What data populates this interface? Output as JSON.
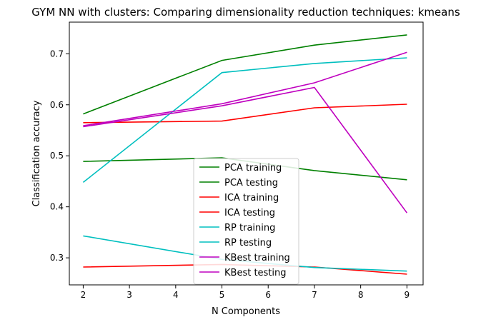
{
  "chart_data": {
    "type": "line",
    "title": "GYM NN with clusters: Comparing dimensionality reduction techniques: kmeans",
    "xlabel": "N Components",
    "ylabel": "Classification accuracy",
    "x": [
      2,
      5,
      7,
      9
    ],
    "xticks": [
      "2",
      "3",
      "4",
      "5",
      "6",
      "7",
      "8",
      "9"
    ],
    "yticks": [
      "0.3",
      "0.4",
      "0.5",
      "0.6",
      "0.7"
    ],
    "xlim": [
      1.7,
      9.35
    ],
    "ylim": [
      0.247,
      0.762
    ],
    "grid": false,
    "legend_position": "lower-center",
    "series": [
      {
        "name": "PCA training",
        "color": "#008000",
        "values": [
          0.582,
          0.687,
          0.717,
          0.737
        ]
      },
      {
        "name": "PCA testing",
        "color": "#008000",
        "values": [
          0.489,
          0.496,
          0.471,
          0.453
        ]
      },
      {
        "name": "ICA training",
        "color": "#ff0000",
        "values": [
          0.565,
          0.568,
          0.594,
          0.601
        ]
      },
      {
        "name": "ICA testing",
        "color": "#ff0000",
        "values": [
          0.282,
          0.287,
          0.282,
          0.268
        ]
      },
      {
        "name": "RP training",
        "color": "#00bfbf",
        "values": [
          0.448,
          0.663,
          0.681,
          0.692
        ]
      },
      {
        "name": "RP testing",
        "color": "#00bfbf",
        "values": [
          0.343,
          0.297,
          0.281,
          0.274
        ]
      },
      {
        "name": "KBest training",
        "color": "#bf00bf",
        "values": [
          0.559,
          0.602,
          0.643,
          0.703
        ]
      },
      {
        "name": "KBest testing",
        "color": "#bf00bf",
        "values": [
          0.557,
          0.598,
          0.634,
          0.388
        ]
      }
    ]
  }
}
